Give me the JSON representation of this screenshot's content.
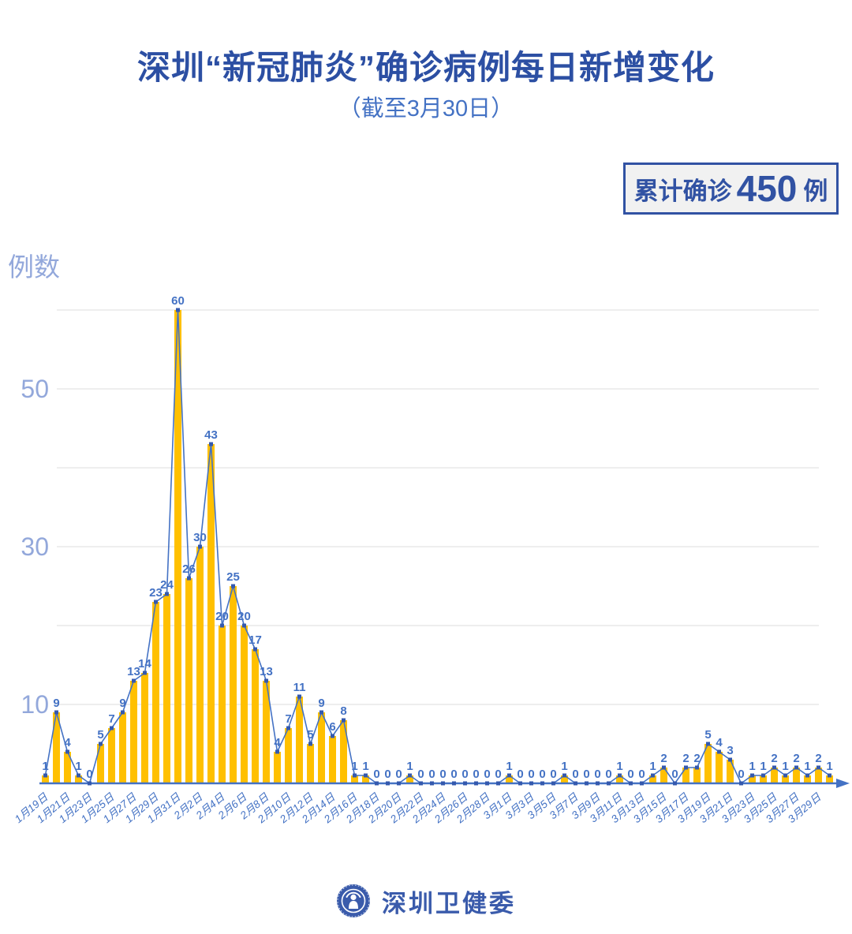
{
  "header": {
    "title": "深圳“新冠肺炎”确诊病例每日新增变化",
    "subtitle": "（截至3月30日）"
  },
  "badge": {
    "label": "累计确诊",
    "value": "450",
    "unit": "例"
  },
  "footer": {
    "org_name": "深圳卫健委",
    "logo_icon": "shenzhen-health-commission-emblem"
  },
  "chart_data": {
    "type": "line",
    "title": "深圳“新冠肺炎”确诊病例每日新增变化",
    "subtitle": "（截至3月30日）",
    "ylabel": "例数",
    "xlabel": "",
    "ylim": [
      0,
      60
    ],
    "grid": "horizontal",
    "gridline_values": [
      10,
      20,
      30,
      40,
      50,
      60
    ],
    "ytick_labels": [
      {
        "value": 50,
        "text": "50"
      },
      {
        "value": 30,
        "text": "30"
      },
      {
        "value": 10,
        "text": "10"
      }
    ],
    "x_label_every": 2,
    "dates": [
      "1月19日",
      "1月20日",
      "1月21日",
      "1月22日",
      "1月23日",
      "1月24日",
      "1月25日",
      "1月26日",
      "1月27日",
      "1月28日",
      "1月29日",
      "1月30日",
      "1月31日",
      "2月1日",
      "2月2日",
      "2月3日",
      "2月4日",
      "2月5日",
      "2月6日",
      "2月7日",
      "2月8日",
      "2月9日",
      "2月10日",
      "2月11日",
      "2月12日",
      "2月13日",
      "2月14日",
      "2月15日",
      "2月16日",
      "2月17日",
      "2月18日",
      "2月19日",
      "2月20日",
      "2月21日",
      "2月22日",
      "2月23日",
      "2月24日",
      "2月25日",
      "2月26日",
      "2月27日",
      "2月28日",
      "2月29日",
      "3月1日",
      "3月2日",
      "3月3日",
      "3月4日",
      "3月5日",
      "3月6日",
      "3月7日",
      "3月8日",
      "3月9日",
      "3月10日",
      "3月11日",
      "3月12日",
      "3月13日",
      "3月14日",
      "3月15日",
      "3月16日",
      "3月17日",
      "3月18日",
      "3月19日",
      "3月20日",
      "3月21日",
      "3月22日",
      "3月23日",
      "3月24日",
      "3月25日",
      "3月26日",
      "3月27日",
      "3月28日",
      "3月29日",
      "3月30日"
    ],
    "values": [
      1,
      9,
      4,
      1,
      0,
      5,
      7,
      9,
      13,
      14,
      23,
      24,
      60,
      26,
      30,
      43,
      20,
      25,
      20,
      17,
      13,
      4,
      7,
      11,
      5,
      9,
      6,
      8,
      1,
      1,
      0,
      0,
      0,
      1,
      0,
      0,
      0,
      0,
      0,
      0,
      0,
      0,
      1,
      0,
      0,
      0,
      0,
      1,
      0,
      0,
      0,
      0,
      1,
      0,
      0,
      1,
      2,
      0,
      2,
      2,
      5,
      4,
      3,
      0,
      1,
      1,
      2,
      1,
      2,
      1,
      2,
      1
    ],
    "cumulative_total": 450,
    "colors": {
      "bar": "#FFC000",
      "line": "#4472C4",
      "marker": "#3459AE",
      "value_label": "#4472C4",
      "date_label": "#4472C4",
      "ytick": "#93A8DB",
      "grid": "#E3E3E3",
      "axis": "#4472C4",
      "title": "#2C4FA3",
      "badge_border": "#3152A3",
      "badge_bg": "#F1F1F1"
    }
  }
}
